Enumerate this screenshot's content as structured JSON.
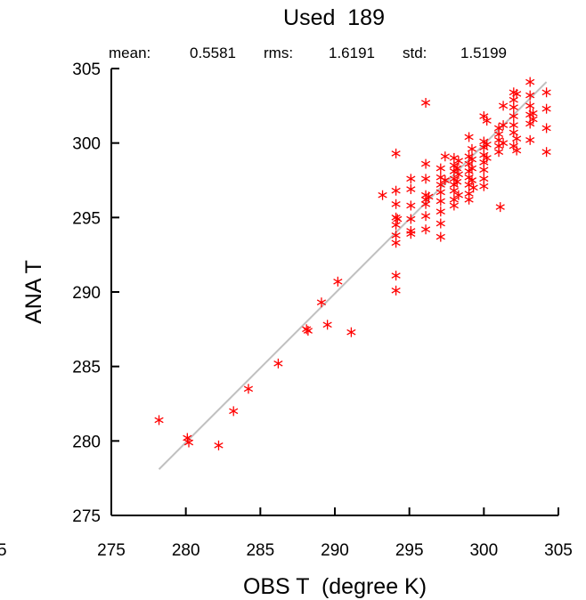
{
  "chart_data": {
    "type": "scatter",
    "title": "Used  189",
    "stats": {
      "mean_label": "mean:",
      "mean_value": "0.5581",
      "rms_label": "rms:",
      "rms_value": "1.6191",
      "std_label": "std:",
      "std_value": "1.5199"
    },
    "xlabel": "OBS T  (degree K)",
    "ylabel": "ANA T",
    "xlim": [
      275,
      305
    ],
    "ylim": [
      275,
      305
    ],
    "xticks": [
      "275",
      "280",
      "285",
      "290",
      "295",
      "300",
      "305"
    ],
    "yticks": [
      "275",
      "280",
      "285",
      "290",
      "295",
      "300",
      "305"
    ],
    "partial_tick_label": "5",
    "grid": false,
    "marker": "asterisk",
    "marker_color": "#ff0000",
    "fit_line": {
      "color": "#c0c0c0",
      "x": [
        278.2,
        304.2
      ],
      "y": [
        278.1,
        304.1
      ]
    },
    "points": [
      [
        278.2,
        281.4
      ],
      [
        280.1,
        280.2
      ],
      [
        280.2,
        279.9
      ],
      [
        282.2,
        279.7
      ],
      [
        283.2,
        282.0
      ],
      [
        284.2,
        283.5
      ],
      [
        286.2,
        285.2
      ],
      [
        288.1,
        287.5
      ],
      [
        288.2,
        287.4
      ],
      [
        289.1,
        289.3
      ],
      [
        289.5,
        287.8
      ],
      [
        290.2,
        290.7
      ],
      [
        291.1,
        287.3
      ],
      [
        293.2,
        296.5
      ],
      [
        294.1,
        299.3
      ],
      [
        294.1,
        296.8
      ],
      [
        294.1,
        295.9
      ],
      [
        294.1,
        295.0
      ],
      [
        294.1,
        294.5
      ],
      [
        294.1,
        293.8
      ],
      [
        294.1,
        293.3
      ],
      [
        294.1,
        291.1
      ],
      [
        294.1,
        290.1
      ],
      [
        294.2,
        294.9
      ],
      [
        295.1,
        297.6
      ],
      [
        295.1,
        296.9
      ],
      [
        295.1,
        295.8
      ],
      [
        295.1,
        294.9
      ],
      [
        295.1,
        294.1
      ],
      [
        295.1,
        293.9
      ],
      [
        296.1,
        302.7
      ],
      [
        296.1,
        298.6
      ],
      [
        296.1,
        297.6
      ],
      [
        296.1,
        296.5
      ],
      [
        296.1,
        296.2
      ],
      [
        296.1,
        295.9
      ],
      [
        296.1,
        295.1
      ],
      [
        296.1,
        294.2
      ],
      [
        296.3,
        296.4
      ],
      [
        297.1,
        298.3
      ],
      [
        297.1,
        297.7
      ],
      [
        297.1,
        297.2
      ],
      [
        297.1,
        296.7
      ],
      [
        297.1,
        296.1
      ],
      [
        297.1,
        295.4
      ],
      [
        297.1,
        294.6
      ],
      [
        297.1,
        293.7
      ],
      [
        297.4,
        299.1
      ],
      [
        297.4,
        297.5
      ],
      [
        298.0,
        299.0
      ],
      [
        298.0,
        298.5
      ],
      [
        298.0,
        298.1
      ],
      [
        298.0,
        297.6
      ],
      [
        298.0,
        297.2
      ],
      [
        298.0,
        296.8
      ],
      [
        298.0,
        296.2
      ],
      [
        298.0,
        295.8
      ],
      [
        298.2,
        298.3
      ],
      [
        298.2,
        297.4
      ],
      [
        298.3,
        298.8
      ],
      [
        298.3,
        297.9
      ],
      [
        298.3,
        296.5
      ],
      [
        299.0,
        300.4
      ],
      [
        299.0,
        299.1
      ],
      [
        299.0,
        298.6
      ],
      [
        299.0,
        298.1
      ],
      [
        299.0,
        297.7
      ],
      [
        299.0,
        297.2
      ],
      [
        299.0,
        296.6
      ],
      [
        299.0,
        296.2
      ],
      [
        299.2,
        299.6
      ],
      [
        299.2,
        298.9
      ],
      [
        299.2,
        298.3
      ],
      [
        299.2,
        297.5
      ],
      [
        299.3,
        297.0
      ],
      [
        300.0,
        301.8
      ],
      [
        300.0,
        300.1
      ],
      [
        300.0,
        299.7
      ],
      [
        300.0,
        299.2
      ],
      [
        300.0,
        298.7
      ],
      [
        300.0,
        298.2
      ],
      [
        300.0,
        297.6
      ],
      [
        300.0,
        297.1
      ],
      [
        300.2,
        301.5
      ],
      [
        300.2,
        299.9
      ],
      [
        300.2,
        299.0
      ],
      [
        301.0,
        301.0
      ],
      [
        301.0,
        300.6
      ],
      [
        301.0,
        300.2
      ],
      [
        301.0,
        299.8
      ],
      [
        301.0,
        299.4
      ],
      [
        301.1,
        295.7
      ],
      [
        301.3,
        302.5
      ],
      [
        301.3,
        301.2
      ],
      [
        301.3,
        300.0
      ],
      [
        302.0,
        303.4
      ],
      [
        302.0,
        302.9
      ],
      [
        302.0,
        302.4
      ],
      [
        302.0,
        301.8
      ],
      [
        302.0,
        301.2
      ],
      [
        302.0,
        300.7
      ],
      [
        302.0,
        299.8
      ],
      [
        302.2,
        303.3
      ],
      [
        302.2,
        300.3
      ],
      [
        302.2,
        299.5
      ],
      [
        303.1,
        304.1
      ],
      [
        303.1,
        303.2
      ],
      [
        303.1,
        302.5
      ],
      [
        303.1,
        301.9
      ],
      [
        303.1,
        301.3
      ],
      [
        303.1,
        300.2
      ],
      [
        303.3,
        302.0
      ],
      [
        303.3,
        301.6
      ],
      [
        304.2,
        303.4
      ],
      [
        304.2,
        302.3
      ],
      [
        304.2,
        301.0
      ],
      [
        304.2,
        299.4
      ]
    ]
  }
}
